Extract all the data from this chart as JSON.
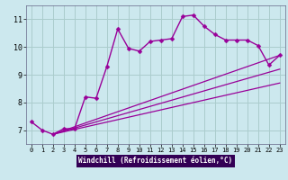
{
  "background_color": "#cce8ee",
  "grid_color": "#aacccc",
  "line_color": "#990099",
  "xlabel": "Windchill (Refroidissement éolien,°C)",
  "xlabel_bg": "#330055",
  "xlabel_fg": "#ffffff",
  "xlim": [
    -0.5,
    23.5
  ],
  "ylim": [
    6.5,
    11.5
  ],
  "yticks": [
    7,
    8,
    9,
    10,
    11
  ],
  "xticks": [
    0,
    1,
    2,
    3,
    4,
    5,
    6,
    7,
    8,
    9,
    10,
    11,
    12,
    13,
    14,
    15,
    16,
    17,
    18,
    19,
    20,
    21,
    22,
    23
  ],
  "series": [
    {
      "x": [
        0,
        1,
        2,
        3,
        4,
        5,
        6,
        7,
        8,
        9,
        10,
        11,
        12,
        13,
        14,
        15,
        16,
        17,
        18,
        19,
        20,
        21,
        22,
        23
      ],
      "y": [
        7.3,
        7.0,
        6.85,
        7.05,
        7.05,
        8.2,
        8.15,
        9.3,
        10.65,
        9.95,
        9.85,
        10.2,
        10.25,
        10.3,
        11.1,
        11.15,
        10.75,
        10.45,
        10.25,
        10.25,
        10.25,
        10.05,
        9.35,
        9.7
      ],
      "marker": "D",
      "markersize": 2.5,
      "linewidth": 1.0,
      "has_marker": true
    },
    {
      "x": [
        2,
        23
      ],
      "y": [
        6.85,
        9.7
      ],
      "has_marker": false,
      "linewidth": 0.9
    },
    {
      "x": [
        2,
        23
      ],
      "y": [
        6.85,
        9.2
      ],
      "has_marker": false,
      "linewidth": 0.9
    },
    {
      "x": [
        2,
        23
      ],
      "y": [
        6.85,
        8.7
      ],
      "has_marker": false,
      "linewidth": 0.9
    }
  ]
}
